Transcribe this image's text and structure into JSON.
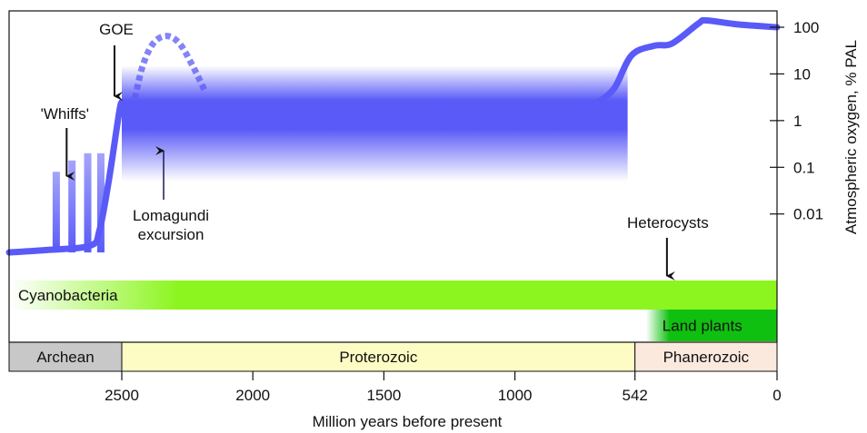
{
  "chart_data": {
    "type": "line",
    "xlabel": "Million years before present",
    "ylabel": "Atmospheric oxygen, % PAL",
    "y_scale": "log",
    "x_reversed": true,
    "xlim": [
      2930,
      0
    ],
    "ylim_log10": [
      -3.25,
      2.35
    ],
    "x_ticks": [
      {
        "value": 2500,
        "label": "2500"
      },
      {
        "value": 2000,
        "label": "2000"
      },
      {
        "value": 1500,
        "label": "1500"
      },
      {
        "value": 1000,
        "label": "1000"
      },
      {
        "value": 542,
        "label": "542"
      },
      {
        "value": 0,
        "label": "0"
      }
    ],
    "y_ticks": [
      {
        "value": 100,
        "label": "100"
      },
      {
        "value": 10,
        "label": "10"
      },
      {
        "value": 1,
        "label": "1"
      },
      {
        "value": 0.1,
        "label": "0.1"
      },
      {
        "value": 0.01,
        "label": "0.01"
      }
    ],
    "oxygen_curve": [
      {
        "x": 2930,
        "y": 0.0015
      },
      {
        "x": 2780,
        "y": 0.0017
      },
      {
        "x": 2620,
        "y": 0.0021
      },
      {
        "x": 2585,
        "y": 0.0045
      },
      {
        "x": 2550,
        "y": 0.05
      },
      {
        "x": 2510,
        "y": 1.5
      },
      {
        "x": 2500,
        "y": 2.5
      }
    ],
    "oxygen_curve_late": [
      {
        "x": 680,
        "y": 2.5
      },
      {
        "x": 620,
        "y": 5
      },
      {
        "x": 555,
        "y": 25
      },
      {
        "x": 470,
        "y": 40
      },
      {
        "x": 400,
        "y": 45
      },
      {
        "x": 300,
        "y": 120
      },
      {
        "x": 270,
        "y": 140
      },
      {
        "x": 150,
        "y": 115
      },
      {
        "x": 0,
        "y": 100
      }
    ],
    "lomagundi_excursion": [
      {
        "x": 2450,
        "y": 3
      },
      {
        "x": 2420,
        "y": 15
      },
      {
        "x": 2380,
        "y": 45
      },
      {
        "x": 2330,
        "y": 65
      },
      {
        "x": 2280,
        "y": 45
      },
      {
        "x": 2230,
        "y": 15
      },
      {
        "x": 2180,
        "y": 4
      }
    ],
    "uncertainty_band": {
      "x_from": 2500,
      "x_to": 570,
      "y_from": 0.05,
      "y_to": 15
    },
    "whiffs_bars": [
      {
        "x": 2750,
        "y": 0.08
      },
      {
        "x": 2690,
        "y": 0.14
      },
      {
        "x": 2630,
        "y": 0.2
      },
      {
        "x": 2580,
        "y": 0.2
      }
    ],
    "annotations": {
      "goe": {
        "label": "GOE",
        "x": 2500
      },
      "whiffs": {
        "label": "'Whiffs'",
        "x": 2700
      },
      "lomagundi": {
        "line1": "Lomagundi",
        "line2": "excursion",
        "x": 2330
      },
      "heterocysts": {
        "label": "Heterocysts",
        "x": 420
      }
    },
    "organism_bars": [
      {
        "label": "Cyanobacteria",
        "x_from": 2930,
        "x_to": 0,
        "color": "#8cf51f"
      },
      {
        "label": "Land plants",
        "x_from": 500,
        "x_to": 0,
        "color": "#10c010"
      }
    ],
    "eons": [
      {
        "label": "Archean",
        "x_from": 2930,
        "x_to": 2500,
        "color": "#c8c8c8"
      },
      {
        "label": "Proterozoic",
        "x_from": 2500,
        "x_to": 542,
        "color": "#fdfcc4"
      },
      {
        "label": "Phanerozoic",
        "x_from": 542,
        "x_to": 0,
        "color": "#fbe9dd"
      }
    ],
    "curve_color": "#5a5af8"
  }
}
